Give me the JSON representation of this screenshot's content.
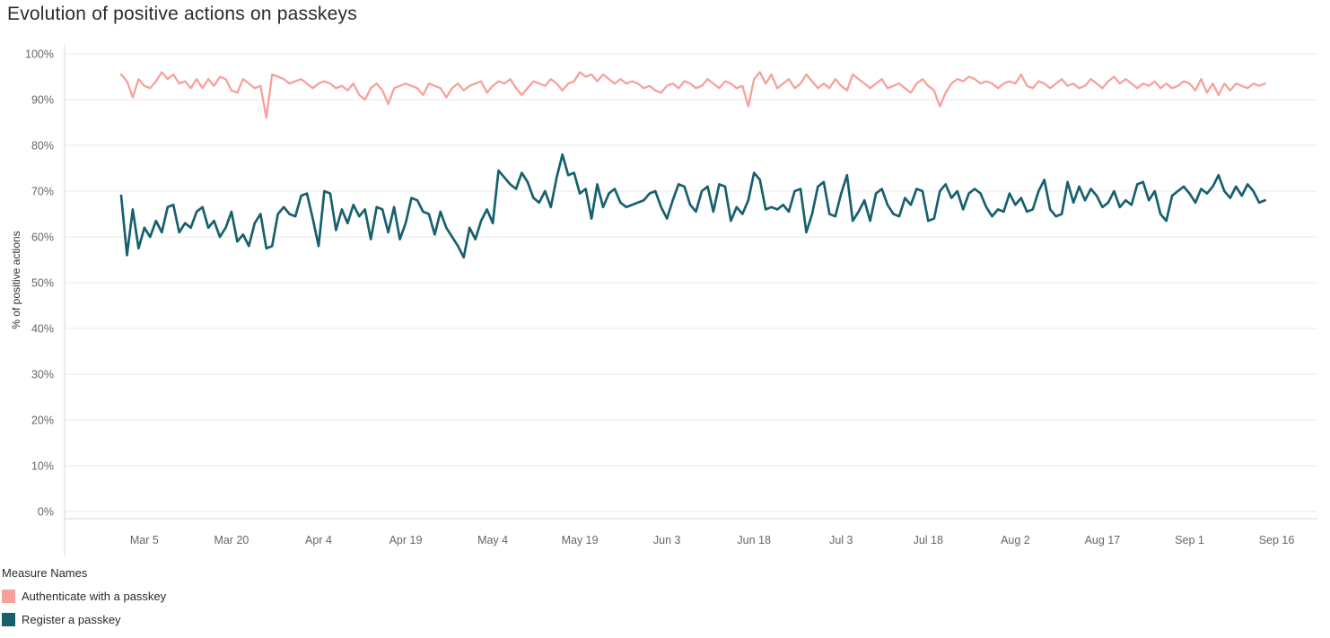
{
  "title": "Evolution of positive actions on passkeys",
  "legend": {
    "title": "Measure Names"
  },
  "chart_data": {
    "type": "line",
    "title": "Evolution of positive actions on passkeys",
    "xlabel": "",
    "ylabel": "% of positive actions",
    "ylim": [
      0,
      100
    ],
    "grid": "horizontal",
    "legend_position": "bottom-left",
    "x_unit": "day",
    "x_start_label": "Mar 1",
    "point_interval": "daily",
    "colors": {
      "grid": "#e8e8e8",
      "axis": "#d7d7d7",
      "tick_label": "#666666",
      "title_text": "#2b2b2b",
      "background": "#ffffff"
    },
    "y_ticks": [
      {
        "value": 0,
        "label": "0%"
      },
      {
        "value": 10,
        "label": "10%"
      },
      {
        "value": 20,
        "label": "20%"
      },
      {
        "value": 30,
        "label": "30%"
      },
      {
        "value": 40,
        "label": "40%"
      },
      {
        "value": 50,
        "label": "50%"
      },
      {
        "value": 60,
        "label": "60%"
      },
      {
        "value": 70,
        "label": "70%"
      },
      {
        "value": 80,
        "label": "80%"
      },
      {
        "value": 90,
        "label": "90%"
      },
      {
        "value": 100,
        "label": "100%"
      }
    ],
    "x_ticks": [
      {
        "label": "Mar 5",
        "day_index": 4
      },
      {
        "label": "Mar 20",
        "day_index": 19
      },
      {
        "label": "Apr 4",
        "day_index": 34
      },
      {
        "label": "Apr 19",
        "day_index": 49
      },
      {
        "label": "May 4",
        "day_index": 64
      },
      {
        "label": "May 19",
        "day_index": 79
      },
      {
        "label": "Jun 3",
        "day_index": 94
      },
      {
        "label": "Jun 18",
        "day_index": 109
      },
      {
        "label": "Jul 3",
        "day_index": 124
      },
      {
        "label": "Jul 18",
        "day_index": 139
      },
      {
        "label": "Aug 2",
        "day_index": 154
      },
      {
        "label": "Aug 17",
        "day_index": 169
      },
      {
        "label": "Sep 1",
        "day_index": 184
      },
      {
        "label": "Sep 16",
        "day_index": 199
      }
    ],
    "series": [
      {
        "name": "Authenticate with a passkey",
        "color": "#f7a19b",
        "values": [
          95.5,
          94,
          90.5,
          94.5,
          93,
          92.5,
          94,
          96,
          94.5,
          95.5,
          93.5,
          94,
          92.5,
          94.5,
          92.5,
          94.5,
          93,
          95,
          94.5,
          92,
          91.5,
          94.5,
          93.5,
          92.5,
          93,
          86,
          95.5,
          95,
          94.5,
          93.5,
          94,
          94.5,
          93.5,
          92.5,
          93.5,
          94,
          93.5,
          92.5,
          93,
          92,
          93.5,
          91,
          90,
          92.5,
          93.5,
          92,
          89,
          92.5,
          93,
          93.5,
          93,
          92.5,
          91,
          93.5,
          93,
          92.5,
          90.5,
          92.5,
          93.5,
          92,
          93,
          93.5,
          94,
          91.5,
          93,
          94,
          93.5,
          94.5,
          92.5,
          91,
          92.5,
          94,
          93.5,
          93,
          94.5,
          93.5,
          92,
          93.5,
          94,
          96,
          95,
          95.5,
          94,
          95.5,
          94.5,
          93.5,
          94.5,
          93.5,
          94,
          93.5,
          92.5,
          93,
          92,
          91.5,
          93,
          93.5,
          92.5,
          94,
          93.5,
          92.5,
          93,
          94.5,
          93.5,
          92.5,
          94,
          93.5,
          92.5,
          93,
          88.5,
          94.5,
          96,
          93.5,
          95.5,
          92.5,
          93.5,
          94.5,
          92.5,
          93.5,
          95.5,
          94,
          92.5,
          93.5,
          92.5,
          94.5,
          93,
          92,
          95.5,
          94.5,
          93.5,
          92.5,
          93.5,
          94.5,
          92.5,
          93,
          93.5,
          92.5,
          91.5,
          93.5,
          94.5,
          93,
          92,
          88.5,
          91.5,
          93.5,
          94.5,
          94,
          95,
          94.5,
          93.5,
          94,
          93.5,
          92.5,
          93.5,
          94,
          93.5,
          95.5,
          93,
          92.5,
          94,
          93.5,
          92.5,
          93.5,
          94.5,
          93,
          93.5,
          92.5,
          93,
          94.5,
          93.5,
          92.5,
          94,
          95,
          93.5,
          94.5,
          93.5,
          92.5,
          93.5,
          93,
          94,
          92.5,
          93.5,
          92.5,
          93,
          94,
          93.5,
          92,
          94.5,
          91.5,
          93.5,
          91,
          93.5,
          92,
          93.5,
          93,
          92.5,
          93.5,
          93,
          93.5
        ]
      },
      {
        "name": "Register a passkey",
        "color": "#17606d",
        "values": [
          69,
          56,
          66,
          57.5,
          62,
          60,
          63.5,
          61,
          66.5,
          67,
          61,
          63,
          62,
          65.5,
          66.5,
          62,
          63.5,
          60,
          62,
          65.5,
          59,
          60.5,
          58,
          63,
          65,
          57.5,
          58,
          65,
          66.5,
          65,
          64.5,
          69,
          69.5,
          64,
          58,
          70,
          69.5,
          61.5,
          66,
          63,
          67,
          64.5,
          66,
          59.5,
          66.5,
          66,
          61,
          66.5,
          59.5,
          63,
          68.5,
          68,
          65.5,
          65,
          60.5,
          65.5,
          62,
          60,
          58,
          55.5,
          62,
          59.5,
          63.5,
          66,
          63,
          74.5,
          73,
          71.5,
          70.5,
          74,
          72,
          68.5,
          67.5,
          70,
          66.5,
          73,
          78,
          73.5,
          74,
          69.5,
          70.5,
          64,
          71.5,
          66.5,
          69.5,
          70.5,
          67.5,
          66.5,
          67,
          67.5,
          68,
          69.5,
          70,
          66.5,
          64,
          68,
          71.5,
          71,
          67,
          65.5,
          70,
          71,
          65.5,
          71.5,
          71,
          63.5,
          66.5,
          65,
          68,
          74,
          72.5,
          66,
          66.5,
          66,
          67,
          65.5,
          70,
          70.5,
          61,
          65,
          71,
          72,
          65,
          64.5,
          69.5,
          73.5,
          63.5,
          65.5,
          68,
          63.5,
          69.5,
          70.5,
          67,
          65,
          64.5,
          68.5,
          67,
          70.5,
          70,
          63.5,
          64,
          70,
          71.5,
          68.5,
          70,
          66,
          69.5,
          70.5,
          69.5,
          66.5,
          64.5,
          66,
          65.5,
          69.5,
          67,
          68.5,
          65.5,
          66,
          70,
          72.5,
          66,
          64.5,
          65,
          72,
          67.5,
          71,
          68,
          70.5,
          69,
          66.5,
          67.5,
          70,
          66.5,
          68,
          67,
          71.5,
          72,
          68,
          70,
          65,
          63.5,
          69,
          70,
          71,
          69.5,
          67.5,
          70.5,
          69.5,
          71,
          73.5,
          70,
          68.5,
          71,
          69,
          71.5,
          70,
          67.5,
          68
        ]
      }
    ]
  }
}
